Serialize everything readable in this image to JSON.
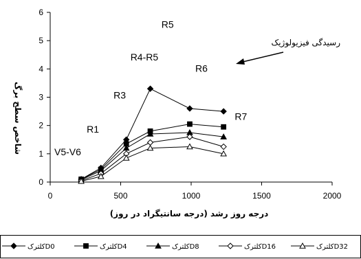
{
  "chart_data": {
    "type": "line",
    "xlabel": "درجه  روز رشد (درجه سانتیگراد در روز)",
    "ylabel": "شاخص سطح برگ",
    "xlim": [
      0,
      2000
    ],
    "ylim": [
      0,
      6
    ],
    "xticks": [
      "0",
      "500",
      "1000",
      "1500",
      "2000"
    ],
    "yticks": [
      "0",
      "1",
      "2",
      "3",
      "4",
      "5",
      "6"
    ],
    "grid": false,
    "legend_position": "bottom",
    "x": [
      220,
      360,
      540,
      710,
      990,
      1230
    ],
    "series": [
      {
        "name": "کلترک‌D0",
        "marker": "diamond-filled",
        "values": [
          0.1,
          0.5,
          1.5,
          3.3,
          2.6,
          2.5
        ]
      },
      {
        "name": "کلترک‌D4",
        "marker": "square-filled",
        "values": [
          0.1,
          0.45,
          1.35,
          1.8,
          2.05,
          1.95
        ]
      },
      {
        "name": "کلترک‌D8",
        "marker": "triangle-filled",
        "values": [
          0.08,
          0.4,
          1.2,
          1.7,
          1.75,
          1.6
        ]
      },
      {
        "name": "کلترک‌D16",
        "marker": "diamond-open",
        "values": [
          0.05,
          0.3,
          1.0,
          1.4,
          1.6,
          1.25
        ]
      },
      {
        "name": "کلترک‌D32",
        "marker": "triangle-open",
        "values": [
          0.03,
          0.2,
          0.85,
          1.2,
          1.25,
          1.0
        ]
      }
    ],
    "annotations": [
      {
        "text": "V5-V6",
        "x": 0,
        "y": 0.95
      },
      {
        "text": "R1",
        "x": 230,
        "y": 1.75
      },
      {
        "text": "R3",
        "x": 420,
        "y": 2.95
      },
      {
        "text": "R4-R5",
        "x": 540,
        "y": 4.3
      },
      {
        "text": "R5",
        "x": 760,
        "y": 5.45
      },
      {
        "text": "R6",
        "x": 1000,
        "y": 3.9
      },
      {
        "text": "R7",
        "x": 1280,
        "y": 2.2
      }
    ],
    "arrow_label": "رسیدگی فیزیولوژیک"
  }
}
